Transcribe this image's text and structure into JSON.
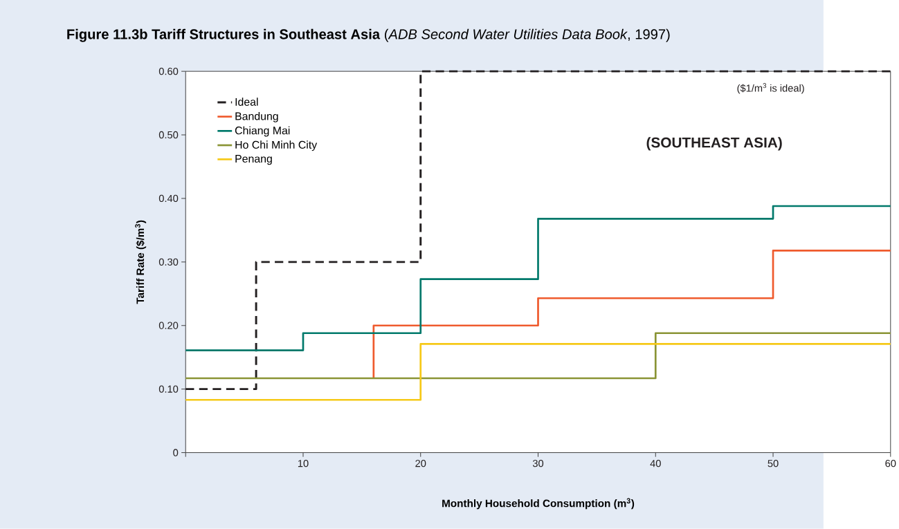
{
  "chart_data": {
    "type": "step",
    "title": "**Figure 11.3b Tariff Structures in Southeast Asia** (*ADB Second Water Utilities Data Book*, 1997)",
    "xlabel": "Monthly Household Consumption (m$^{3}$)",
    "ylabel": "Tariff Rate ($/m$^{3}$)",
    "annotations": [
      "($1/m$^{3}$ is ideal)",
      "(SOUTHEAST ASIA)"
    ],
    "xlim": [
      0,
      60
    ],
    "xticks": [
      {
        "value": 0,
        "label": null
      },
      10,
      20,
      30,
      40,
      50,
      60
    ],
    "ylim": [
      0,
      0.6
    ],
    "yticks": [
      0,
      {
        "value": 0.1,
        "label": "0.10"
      },
      {
        "value": 0.2,
        "label": "0.20"
      },
      {
        "value": 0.3,
        "label": "0.30"
      },
      {
        "value": 0.4,
        "label": "0.40"
      },
      {
        "value": 0.5,
        "label": "0.50"
      },
      {
        "value": 0.6,
        "label": "0.60"
      }
    ],
    "grid": false,
    "legend": "top left",
    "series": [
      {
        "name": "Ideal",
        "color": "#231f20",
        "line_style": "dashed",
        "x": [
          0,
          6,
          20,
          60
        ],
        "values": [
          0.1,
          0.3,
          0.6,
          0.6
        ]
      },
      {
        "name": "Bandung",
        "color": "#ef5a2d",
        "x": [
          16,
          16,
          30,
          50,
          60
        ],
        "values": [
          0.117,
          0.2,
          0.243,
          0.318,
          0.318
        ]
      },
      {
        "name": "Chiang Mai",
        "color": "#00796b",
        "x": [
          0,
          10,
          20,
          30,
          50,
          60
        ],
        "values": [
          0.161,
          0.188,
          0.273,
          0.368,
          0.388,
          0.388
        ]
      },
      {
        "name": "Ho Chi Minh City",
        "color": "#8a9435",
        "x": [
          0,
          40,
          60
        ],
        "values": [
          0.117,
          0.188,
          0.188
        ]
      },
      {
        "name": "Penang",
        "color": "#f6c917",
        "x": [
          0,
          20,
          60
        ],
        "values": [
          0.083,
          0.171,
          0.171
        ]
      }
    ]
  }
}
